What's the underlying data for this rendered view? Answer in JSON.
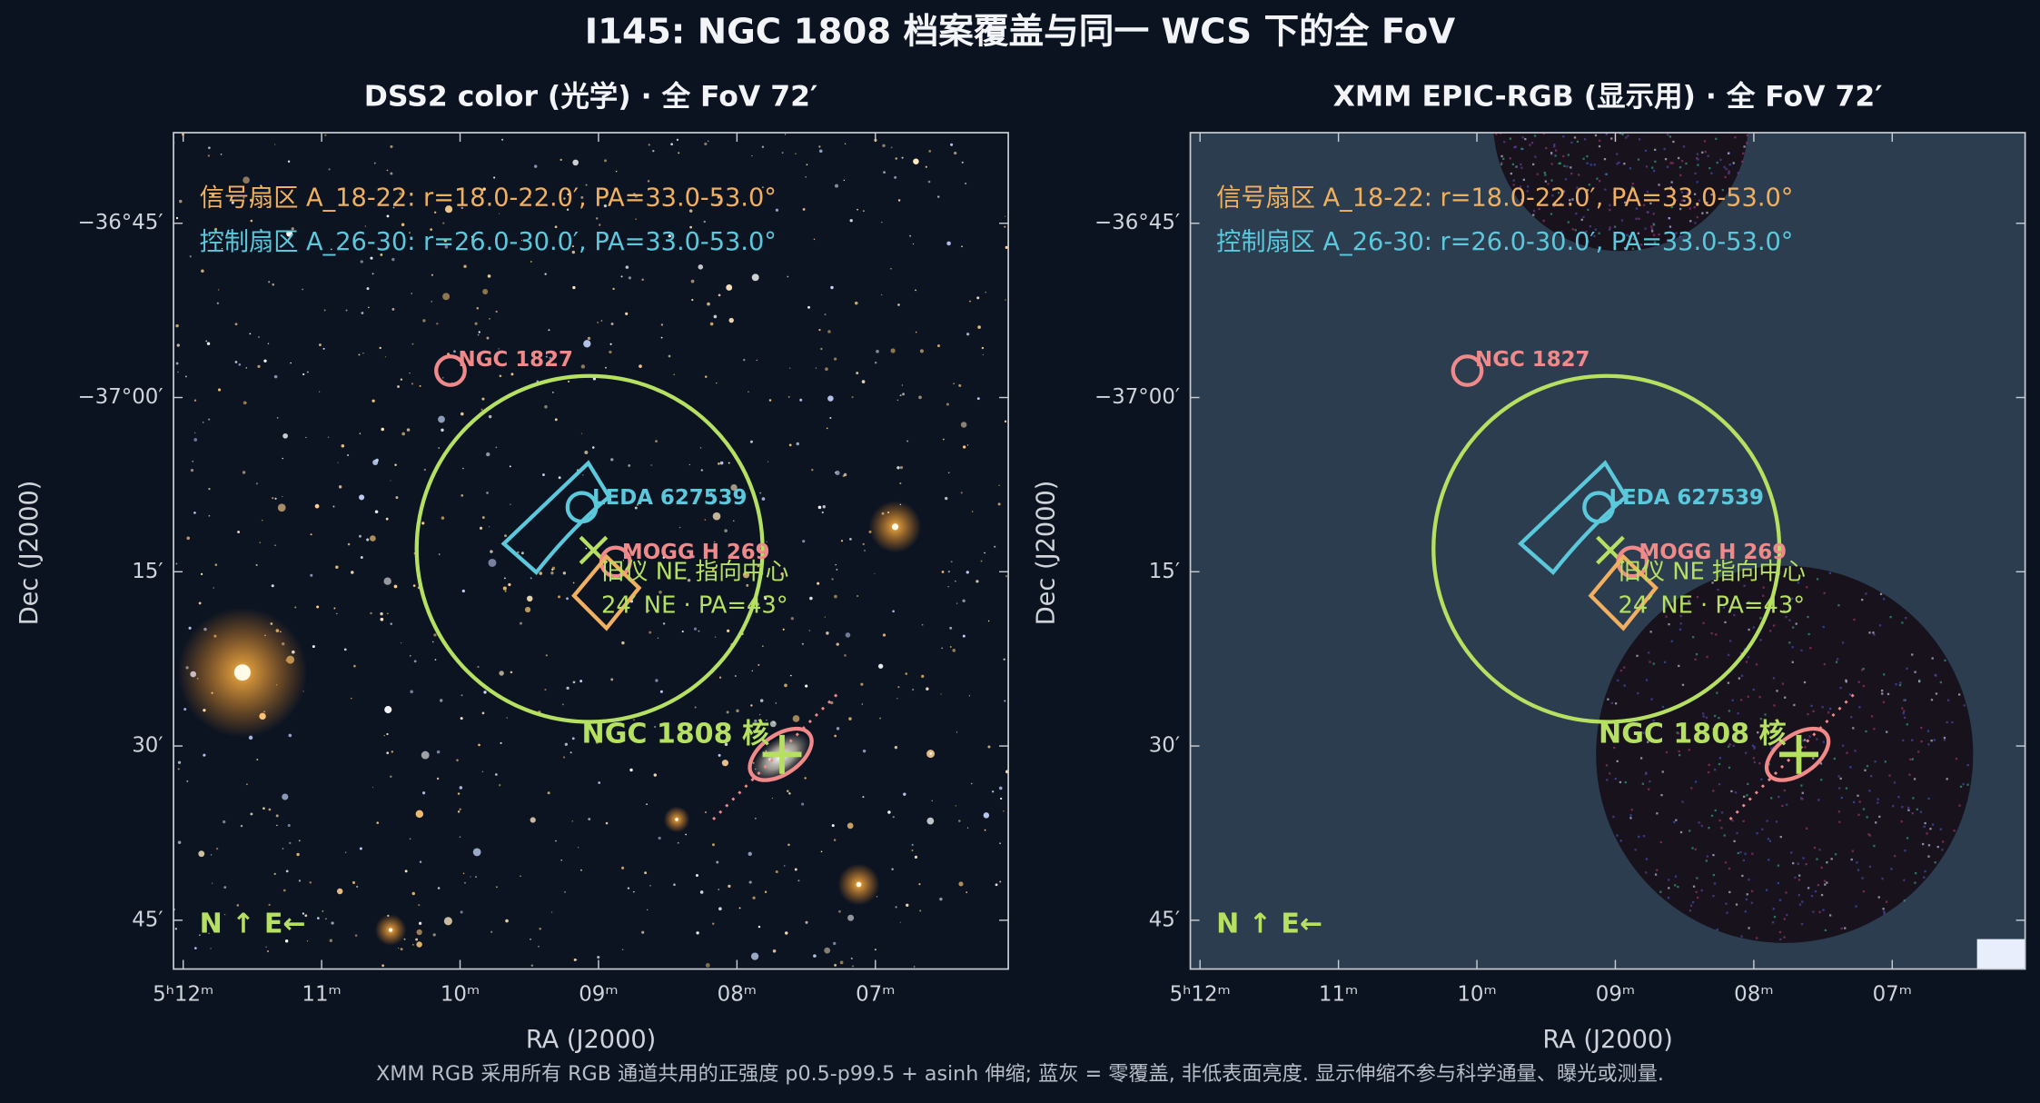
{
  "title": "I145: NGC 1808 档案覆盖与同一 WCS 下的全 FoV",
  "footnote": "XMM RGB 采用所有 RGB 通道共用的正强度 p0.5-p99.5 + asinh 伸缩; 蓝灰 = 零覆盖, 非低表面亮度. 显示伸缩不参与科学通量、曝光或测量.",
  "chart_data": [
    {
      "type": "image",
      "title": "DSS2 color (光学) · 全 FoV 72′",
      "xlabel": "RA (J2000)",
      "ylabel": "Dec (J2000)",
      "xlim": [
        12.07,
        6.04
      ],
      "ylim": [
        -37.82,
        -36.62
      ],
      "xticks": [
        {
          "value": 12,
          "label": "5ʰ12ᵐ"
        },
        {
          "value": 11,
          "label": "11ᵐ"
        },
        {
          "value": 10,
          "label": "10ᵐ"
        },
        {
          "value": 9,
          "label": "09ᵐ"
        },
        {
          "value": 8,
          "label": "08ᵐ"
        },
        {
          "value": 7,
          "label": "07ᵐ"
        }
      ],
      "yticks": [
        {
          "value": -36.75,
          "label": "−36°45′"
        },
        {
          "value": -37.0,
          "label": "−37°00′"
        },
        {
          "value": -37.25,
          "label": "15′"
        },
        {
          "value": -37.5,
          "label": "30′"
        },
        {
          "value": -37.75,
          "label": "45′"
        }
      ],
      "legend": [
        "信号扇区 A_18-22: r=18.0-22.0′, PA=33.0-53.0°",
        "控制扇区 A_26-30: r=26.0-30.0′, PA=33.0-53.0°"
      ],
      "annotations": [
        "NGC 1827",
        "LEDA 627539",
        "MOGG H 269",
        "旧仪 NE 指向中心",
        "24′ NE · PA=43°",
        "NGC 1808 核",
        "N ↑  E←"
      ]
    },
    {
      "type": "image",
      "title": "XMM EPIC-RGB (显示用) · 全 FoV 72′",
      "xlabel": "RA (J2000)",
      "ylabel": "Dec (J2000)",
      "xlim": [
        12.07,
        6.04
      ],
      "ylim": [
        -37.82,
        -36.62
      ],
      "xticks": [
        {
          "value": 12,
          "label": "5ʰ12ᵐ"
        },
        {
          "value": 11,
          "label": "11ᵐ"
        },
        {
          "value": 10,
          "label": "10ᵐ"
        },
        {
          "value": 9,
          "label": "09ᵐ"
        },
        {
          "value": 8,
          "label": "08ᵐ"
        },
        {
          "value": 7,
          "label": "07ᵐ"
        }
      ],
      "yticks": [
        {
          "value": -36.75,
          "label": "−36°45′"
        },
        {
          "value": -37.0,
          "label": "−37°00′"
        },
        {
          "value": -37.25,
          "label": "15′"
        },
        {
          "value": -37.5,
          "label": "30′"
        },
        {
          "value": -37.75,
          "label": "45′"
        }
      ],
      "legend": [
        "信号扇区 A_18-22: r=18.0-22.0′, PA=33.0-53.0°",
        "控制扇区 A_26-30: r=26.0-30.0′, PA=33.0-53.0°"
      ],
      "annotations": [
        "NGC 1827",
        "LEDA 627539",
        "MOGG H 269",
        "旧仪 NE 指向中心",
        "24′ NE · PA=43°",
        "NGC 1808 核",
        "N ↑  E←"
      ]
    }
  ]
}
